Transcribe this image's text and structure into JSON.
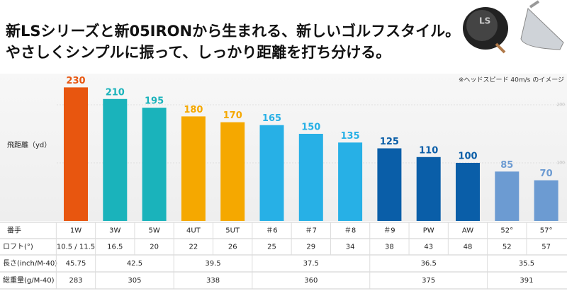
{
  "chart_data": {
    "type": "bar",
    "title_lines": [
      "新LSシリーズと新05IRONから生まれる、新しいゴルフスタイル。",
      "やさしくシンプルに振って、しっかり距離を打ち分ける。"
    ],
    "note": "※ヘッドスピード 40m/s のイメージ",
    "y_label": "飛距離（yd）",
    "categories": [
      "1W",
      "3W",
      "5W",
      "4UT",
      "5UT",
      "＃6",
      "＃7",
      "＃8",
      "＃9",
      "PW",
      "AW",
      "52°",
      "57°"
    ],
    "values": [
      230,
      210,
      195,
      180,
      170,
      165,
      150,
      135,
      125,
      110,
      100,
      85,
      70
    ],
    "colors": [
      "#e8560f",
      "#1ab3bb",
      "#1ab3bb",
      "#f5a800",
      "#f5a800",
      "#27b0e6",
      "#27b0e6",
      "#27b0e6",
      "#0a5ea8",
      "#0a5ea8",
      "#0a5ea8",
      "#6c9bd2",
      "#6c9bd2"
    ],
    "ylim": [
      0,
      250
    ],
    "yticks": [
      100,
      200
    ],
    "grid": true,
    "table": {
      "header_label": "番手",
      "rows": [
        {
          "label": "ロフト(°)",
          "cells": [
            {
              "text": "10.5 / 11.5",
              "span": 1
            },
            {
              "text": "16.5",
              "span": 1
            },
            {
              "text": "20",
              "span": 1
            },
            {
              "text": "22",
              "span": 1
            },
            {
              "text": "26",
              "span": 1
            },
            {
              "text": "25",
              "span": 1
            },
            {
              "text": "29",
              "span": 1
            },
            {
              "text": "34",
              "span": 1
            },
            {
              "text": "38",
              "span": 1
            },
            {
              "text": "43",
              "span": 1
            },
            {
              "text": "48",
              "span": 1
            },
            {
              "text": "52",
              "span": 1
            },
            {
              "text": "57",
              "span": 1
            }
          ]
        },
        {
          "label": "長さ(inch/M-40)",
          "cells": [
            {
              "text": "45.75",
              "span": 1
            },
            {
              "text": "42.5",
              "span": 2
            },
            {
              "text": "39.5",
              "span": 2
            },
            {
              "text": "37.5",
              "span": 3
            },
            {
              "text": "36.5",
              "span": 3
            },
            {
              "text": "35.5",
              "span": 2
            }
          ]
        },
        {
          "label": "総重量(g/M-40)",
          "cells": [
            {
              "text": "283",
              "span": 1
            },
            {
              "text": "305",
              "span": 2
            },
            {
              "text": "338",
              "span": 2
            },
            {
              "text": "360",
              "span": 3
            },
            {
              "text": "375",
              "span": 3
            },
            {
              "text": "391",
              "span": 2
            }
          ]
        }
      ]
    }
  }
}
